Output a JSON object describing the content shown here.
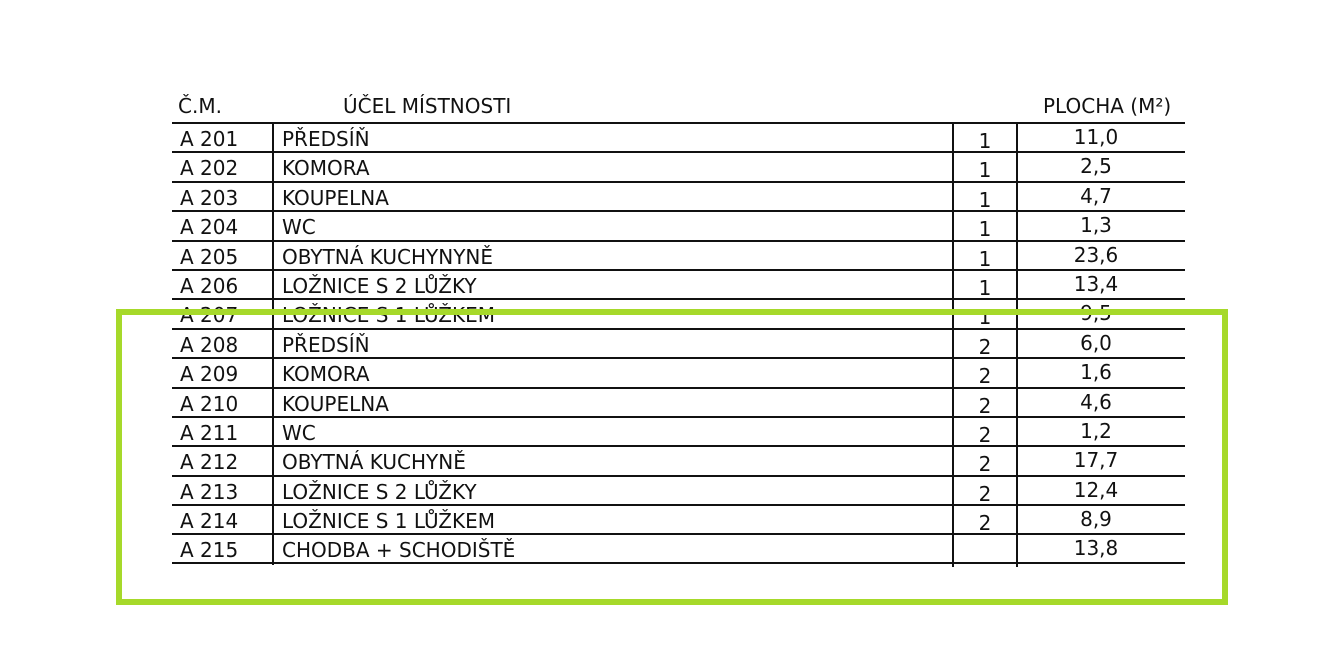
{
  "header": {
    "id": "Č.M.",
    "purpose": "ÚČEL MÍSTNOSTI",
    "area": "PLOCHA (M²)"
  },
  "rows": [
    {
      "id": "A 201",
      "name": "PŘEDSÍŇ",
      "unit": "1",
      "area": "11,0"
    },
    {
      "id": "A 202",
      "name": "KOMORA",
      "unit": "1",
      "area": "2,5"
    },
    {
      "id": "A 203",
      "name": "KOUPELNA",
      "unit": "1",
      "area": "4,7"
    },
    {
      "id": "A 204",
      "name": "WC",
      "unit": "1",
      "area": "1,3"
    },
    {
      "id": "A 205",
      "name": "OBYTNÁ KUCHYNYNĚ",
      "unit": "1",
      "area": "23,6"
    },
    {
      "id": "A 206",
      "name": "LOŽNICE S 2 LŮŽKY",
      "unit": "1",
      "area": "13,4"
    },
    {
      "id": "A 207",
      "name": "LOŽNICE S 1 LŮŽKEM",
      "unit": "1",
      "area": "9,5"
    },
    {
      "id": "A 208",
      "name": "PŘEDSÍŇ",
      "unit": "2",
      "area": "6,0"
    },
    {
      "id": "A 209",
      "name": "KOMORA",
      "unit": "2",
      "area": "1,6"
    },
    {
      "id": "A 210",
      "name": "KOUPELNA",
      "unit": "2",
      "area": "4,6"
    },
    {
      "id": "A 211",
      "name": "WC",
      "unit": "2",
      "area": "1,2"
    },
    {
      "id": "A 212",
      "name": "OBYTNÁ KUCHYNĚ",
      "unit": "2",
      "area": "17,7"
    },
    {
      "id": "A 213",
      "name": "LOŽNICE S 2 LŮŽKY",
      "unit": "2",
      "area": "12,4"
    },
    {
      "id": "A 214",
      "name": "LOŽNICE S 1 LŮŽKEM",
      "unit": "2",
      "area": "8,9"
    },
    {
      "id": "A 215",
      "name": "CHODBA + SCHODIŠTĚ",
      "unit": "",
      "area": "13,8"
    }
  ],
  "highlight_color": "#a6d92a"
}
